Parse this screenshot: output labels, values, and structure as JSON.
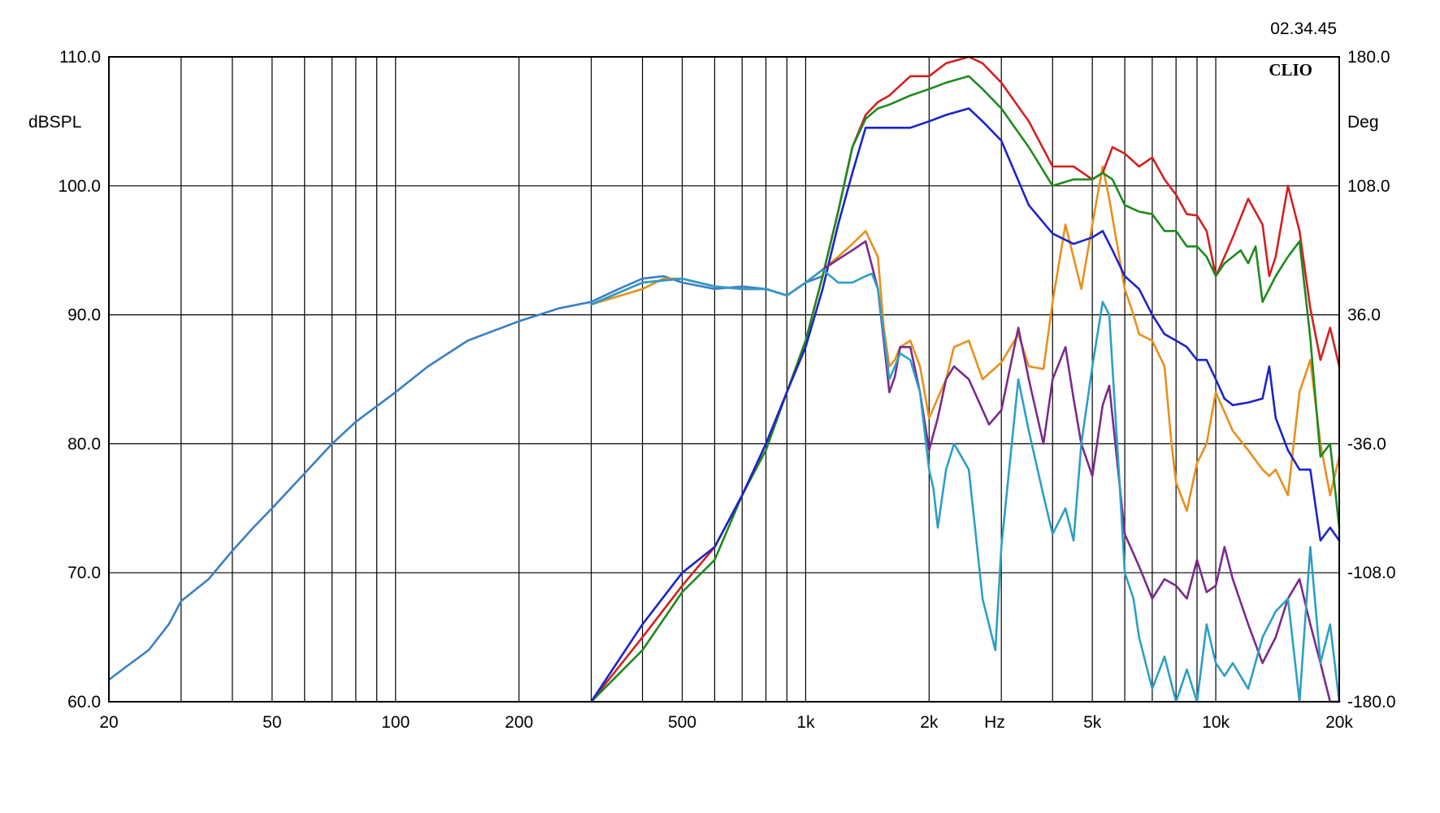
{
  "timestamp": "02.34.45",
  "brand": "CLIO",
  "chart_data": {
    "type": "line",
    "x_scale": "log",
    "xlim": [
      20,
      20000
    ],
    "ylim": [
      60,
      110
    ],
    "y2lim": [
      -180,
      180
    ],
    "grid": true,
    "ylabel": "dBSPL",
    "y2label": "Deg",
    "xlabel": "Hz",
    "x_ticks": [
      {
        "value": 20,
        "label": "20"
      },
      {
        "value": 50,
        "label": "50"
      },
      {
        "value": 100,
        "label": "100"
      },
      {
        "value": 200,
        "label": "200"
      },
      {
        "value": 500,
        "label": "500"
      },
      {
        "value": 1000,
        "label": "1k"
      },
      {
        "value": 2000,
        "label": "2k"
      },
      {
        "value": 5000,
        "label": "5k"
      },
      {
        "value": 10000,
        "label": "10k"
      },
      {
        "value": 20000,
        "label": "20k"
      }
    ],
    "y_ticks": [
      {
        "value": 60,
        "label": "60.0"
      },
      {
        "value": 70,
        "label": "70.0"
      },
      {
        "value": 80,
        "label": "80.0"
      },
      {
        "value": 90,
        "label": "90.0"
      },
      {
        "value": 100,
        "label": "100.0"
      },
      {
        "value": 110,
        "label": "110.0"
      }
    ],
    "y2_ticks": [
      {
        "value": -180,
        "label": "-180.0"
      },
      {
        "value": -108,
        "label": "-108.0"
      },
      {
        "value": -36,
        "label": "-36.0"
      },
      {
        "value": 36,
        "label": "36.0"
      },
      {
        "value": 108,
        "label": "108.0"
      },
      {
        "value": 180,
        "label": "180.0"
      }
    ],
    "series": [
      {
        "color": "#3b7fc4",
        "x": [
          20,
          22,
          25,
          28,
          30,
          35,
          40,
          45,
          50,
          60,
          70,
          80,
          100,
          120,
          150,
          200,
          250,
          300,
          350,
          400,
          450,
          500,
          600,
          700,
          800,
          900,
          1000,
          1100
        ],
        "y": [
          61.7,
          62.7,
          64,
          66,
          67.8,
          69.5,
          71.7,
          73.5,
          75,
          77.7,
          80,
          81.7,
          84,
          86,
          88,
          89.5,
          90.5,
          91,
          92,
          92.8,
          93,
          92.5,
          92,
          92.2,
          92,
          91.5,
          92.5,
          93
        ]
      },
      {
        "color": "#e8901c",
        "x": [
          300,
          400,
          450,
          500,
          600,
          700,
          800,
          900,
          1000,
          1100,
          1200,
          1300,
          1400,
          1500,
          1550,
          1600,
          1650,
          1700,
          1800,
          1900,
          2000,
          2200,
          2300,
          2500,
          2700,
          3000,
          3300,
          3500,
          3800,
          4000,
          4300,
          4700,
          5000,
          5300,
          5500,
          6000,
          6300,
          6500,
          7000,
          7500,
          7800,
          8000,
          8500,
          9000,
          9500,
          10000,
          11000,
          12000,
          13000,
          13500,
          14000,
          15000,
          16000,
          17000,
          18000,
          19000,
          20000
        ],
        "y": [
          90.8,
          92,
          92.8,
          92.8,
          92.2,
          92,
          92,
          91.5,
          92.5,
          93.5,
          94.5,
          95.5,
          96.5,
          94.5,
          89,
          86,
          86.5,
          87.5,
          88,
          86,
          82,
          85,
          87.5,
          88,
          85,
          86.3,
          88.5,
          86,
          85.8,
          91,
          97,
          92,
          97,
          101.5,
          99,
          92,
          90,
          88.5,
          88,
          86,
          80,
          77,
          74.8,
          78.5,
          80,
          84,
          81,
          79.5,
          78,
          77.5,
          78,
          76,
          84,
          86.5,
          80,
          76,
          79
        ]
      },
      {
        "color": "#d32020",
        "x": [
          300,
          400,
          500,
          600,
          700,
          800,
          900,
          1000,
          1100,
          1200,
          1300,
          1400,
          1500,
          1600,
          1800,
          2000,
          2200,
          2500,
          2700,
          3000,
          3500,
          4000,
          4500,
          5000,
          5300,
          5600,
          6000,
          6500,
          7000,
          7500,
          8000,
          8500,
          9000,
          9500,
          10000,
          10500,
          11000,
          12000,
          13000,
          13500,
          14000,
          15000,
          16000,
          17000,
          18000,
          19000,
          20000
        ],
        "y": [
          60,
          65,
          69,
          72,
          76,
          80,
          84,
          88,
          93,
          98,
          103,
          105.5,
          106.5,
          107,
          108.5,
          108.5,
          109.5,
          110,
          109.5,
          108,
          105,
          101.5,
          101.5,
          100.5,
          101,
          103,
          102.5,
          101.5,
          102.2,
          100.5,
          99.3,
          97.8,
          97.7,
          96.5,
          93,
          94.5,
          96,
          99,
          97,
          93,
          94.5,
          100,
          96.5,
          90.5,
          86.5,
          89,
          86
        ]
      },
      {
        "color": "#1e8a1e",
        "x": [
          300,
          400,
          500,
          600,
          700,
          800,
          900,
          1000,
          1100,
          1200,
          1300,
          1400,
          1500,
          1600,
          1800,
          2000,
          2200,
          2500,
          2700,
          3000,
          3500,
          4000,
          4500,
          5000,
          5300,
          5600,
          6000,
          6500,
          7000,
          7500,
          8000,
          8500,
          9000,
          9500,
          10000,
          10500,
          11000,
          11500,
          12000,
          12500,
          13000,
          14000,
          15000,
          16000,
          17000,
          18000,
          19000,
          20000
        ],
        "y": [
          59.5,
          64,
          68.5,
          71,
          76,
          79.5,
          84,
          88,
          93,
          98,
          103,
          105.2,
          106,
          106.3,
          107,
          107.5,
          108,
          108.5,
          107.5,
          106,
          103,
          100,
          100.5,
          100.5,
          101,
          100.5,
          98.5,
          98,
          97.8,
          96.5,
          96.5,
          95.3,
          95.3,
          94.5,
          93,
          94,
          94.5,
          95,
          94,
          95.3,
          91,
          93,
          94.5,
          95.7,
          88.2,
          79,
          80,
          73.5
        ]
      },
      {
        "color": "#1c24c8",
        "x": [
          300,
          400,
          500,
          600,
          700,
          800,
          900,
          1000,
          1100,
          1200,
          1300,
          1400,
          1500,
          1600,
          1800,
          2000,
          2200,
          2500,
          2700,
          3000,
          3500,
          4000,
          4500,
          5000,
          5300,
          5600,
          6000,
          6500,
          7000,
          7500,
          8000,
          8500,
          9000,
          9500,
          10000,
          10500,
          11000,
          12000,
          13000,
          13500,
          14000,
          15000,
          16000,
          17000,
          18000,
          19000,
          20000
        ],
        "y": [
          60,
          66,
          70,
          72,
          76,
          80,
          84,
          87.5,
          92,
          97,
          101,
          104.5,
          104.5,
          104.5,
          104.5,
          105,
          105.5,
          106,
          105,
          103.5,
          98.5,
          96.3,
          95.5,
          96,
          96.5,
          95,
          93,
          92,
          90,
          88.5,
          88,
          87.5,
          86.5,
          86.5,
          85,
          83.5,
          83,
          83.2,
          83.5,
          86,
          82,
          79.5,
          78,
          78,
          72.5,
          73.5,
          72.5
        ]
      },
      {
        "color": "#7a2b8c",
        "x": [
          300,
          400,
          500,
          600,
          700,
          800,
          900,
          1000,
          1100,
          1200,
          1300,
          1400,
          1500,
          1550,
          1600,
          1650,
          1700,
          1800,
          1900,
          2000,
          2100,
          2200,
          2300,
          2500,
          2800,
          3000,
          3300,
          3500,
          3800,
          4000,
          4300,
          4500,
          4700,
          5000,
          5300,
          5500,
          6000,
          6500,
          7000,
          7500,
          8000,
          8500,
          9000,
          9500,
          10000,
          10500,
          11000,
          12000,
          13000,
          14000,
          15000,
          16000,
          17000,
          18000,
          19000,
          20000
        ],
        "y": [
          90.8,
          92.5,
          92.8,
          92.2,
          92,
          92,
          91.5,
          92.5,
          93.5,
          94.3,
          95,
          95.7,
          92,
          88,
          84,
          85.2,
          87.5,
          87.5,
          84,
          79.5,
          82,
          85,
          86,
          85,
          81.5,
          82.6,
          89,
          85,
          80,
          85,
          87.5,
          83.5,
          80,
          77.5,
          83,
          84.5,
          73,
          70.5,
          68,
          69.5,
          69,
          68,
          71,
          68.5,
          69,
          72,
          69.5,
          66,
          63,
          65,
          68,
          69.5,
          66,
          63,
          60,
          60
        ]
      },
      {
        "color": "#2e9ec6",
        "x": [
          300,
          400,
          500,
          600,
          700,
          800,
          900,
          1000,
          1100,
          1200,
          1300,
          1400,
          1450,
          1500,
          1550,
          1600,
          1650,
          1700,
          1800,
          1900,
          2000,
          2050,
          2100,
          2200,
          2300,
          2500,
          2700,
          2900,
          3000,
          3300,
          3500,
          3800,
          4000,
          4300,
          4500,
          4700,
          5000,
          5300,
          5500,
          5800,
          6000,
          6300,
          6500,
          7000,
          7500,
          8000,
          8500,
          9000,
          9500,
          10000,
          10500,
          11000,
          12000,
          13000,
          14000,
          15000,
          16000,
          17000,
          18000,
          19000,
          20000
        ],
        "y": [
          90.8,
          92.5,
          92.8,
          92.2,
          92,
          92,
          91.5,
          92.5,
          93.5,
          92.5,
          92.5,
          93,
          93.2,
          92,
          88.5,
          85,
          86,
          87,
          86.5,
          84,
          78,
          76.5,
          73.5,
          78,
          80,
          78,
          68,
          64,
          72,
          85,
          81,
          76,
          73,
          75,
          72.5,
          80,
          86,
          91,
          90,
          78,
          70,
          68,
          65,
          61,
          63.5,
          59.5,
          62.5,
          60,
          66,
          63,
          62,
          63,
          61,
          65,
          67,
          68,
          60,
          72,
          63,
          66,
          60
        ]
      }
    ]
  }
}
